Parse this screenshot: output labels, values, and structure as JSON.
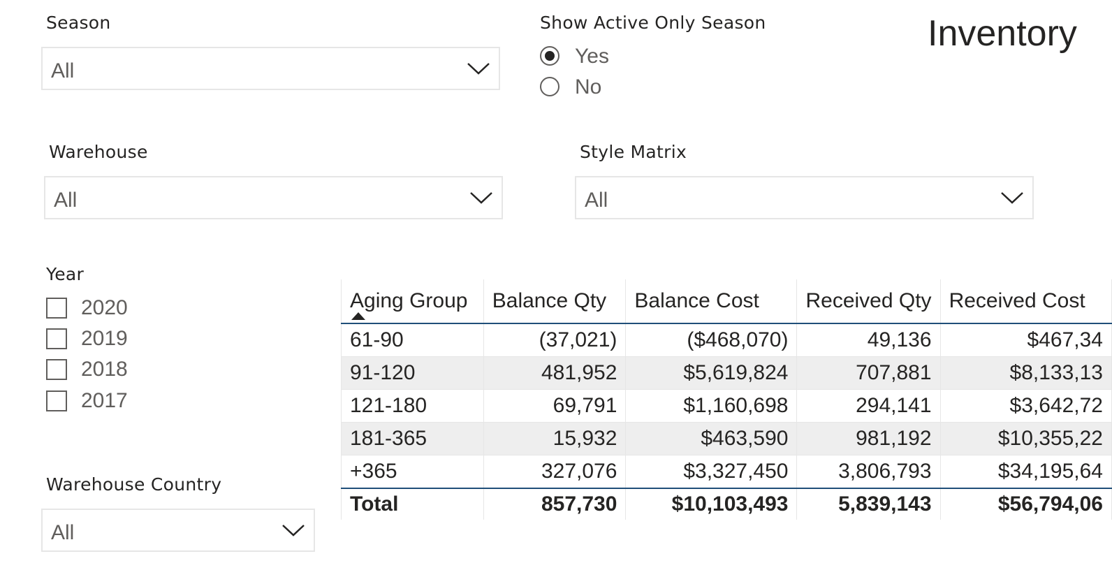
{
  "page": {
    "title": "Inventory"
  },
  "season": {
    "label": "Season",
    "value": "All"
  },
  "active_only": {
    "label": "Show Active Only Season",
    "options": [
      {
        "label": "Yes",
        "checked": true
      },
      {
        "label": "No",
        "checked": false
      }
    ]
  },
  "warehouse": {
    "label": "Warehouse",
    "value": "All"
  },
  "style_matrix": {
    "label": "Style Matrix",
    "value": "All"
  },
  "year": {
    "label": "Year",
    "options": [
      {
        "label": "2020",
        "checked": false
      },
      {
        "label": "2019",
        "checked": false
      },
      {
        "label": "2018",
        "checked": false
      },
      {
        "label": "2017",
        "checked": false
      }
    ]
  },
  "warehouse_country": {
    "label": "Warehouse Country",
    "value": "All"
  },
  "colors": {
    "header_rule": "#1f4e79",
    "alt_row": "#eeeeee",
    "border": "#e6e6e6"
  },
  "table": {
    "columns": [
      "Aging Group",
      "Balance Qty",
      "Balance Cost",
      "Received Qty",
      "Received Cost"
    ],
    "sort": {
      "column": "Aging Group",
      "direction": "ascending"
    },
    "rows": [
      [
        "61-90",
        "(37,021)",
        "($468,070)",
        "49,136",
        "$467,34"
      ],
      [
        "91-120",
        "481,952",
        "$5,619,824",
        "707,881",
        "$8,133,13"
      ],
      [
        "121-180",
        "69,791",
        "$1,160,698",
        "294,141",
        "$3,642,72"
      ],
      [
        "181-365",
        "15,932",
        "$463,590",
        "981,192",
        "$10,355,22"
      ],
      [
        "+365",
        "327,076",
        "$3,327,450",
        "3,806,793",
        "$34,195,64"
      ]
    ],
    "total": [
      "Total",
      "857,730",
      "$10,103,493",
      "5,839,143",
      "$56,794,06"
    ]
  }
}
